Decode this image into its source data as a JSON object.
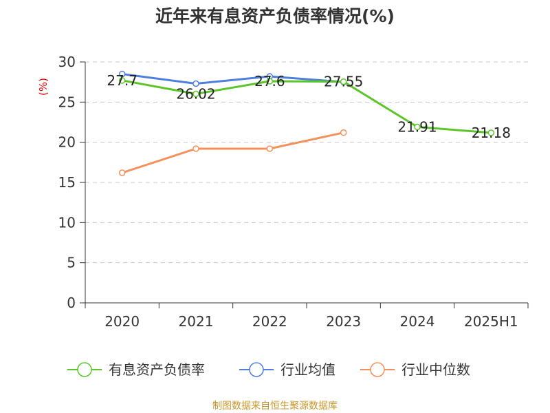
{
  "title": "近年来有息资产负债率情况(%)",
  "source": "制图数据来自恒生聚源数据库",
  "colors": {
    "series": [
      "#5cc52a",
      "#4e7fde",
      "#f4905b"
    ],
    "axis": "#333333",
    "grid": "#c8c8c8",
    "unit": "#e60000",
    "source": "#c8962a"
  },
  "chart_data": {
    "type": "line",
    "title": "近年来有息资产负债率情况(%)",
    "ylabel": "(%)",
    "xlabel": "",
    "categories": [
      "2020",
      "2021",
      "2022",
      "2023",
      "2024",
      "2025H1"
    ],
    "ylim": [
      0,
      30
    ],
    "yticks": [
      0,
      5,
      10,
      15,
      20,
      25,
      30
    ],
    "grid": "horizontal dashed",
    "legend_position": "bottom",
    "series": [
      {
        "name": "有息资产负债率",
        "values": [
          27.7,
          26.02,
          27.6,
          27.55,
          21.91,
          21.18
        ],
        "labels": [
          "27.7",
          "26.02",
          "27.6",
          "27.55",
          "21.91",
          "21.18"
        ]
      },
      {
        "name": "行业均值",
        "values": [
          28.5,
          27.3,
          28.2,
          27.5,
          null,
          null
        ]
      },
      {
        "name": "行业中位数",
        "values": [
          16.2,
          19.2,
          19.2,
          21.2,
          null,
          null
        ]
      }
    ]
  }
}
